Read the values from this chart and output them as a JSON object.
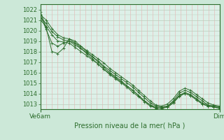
{
  "title": "Pression niveau de la mer( hPa )",
  "xlabel_left": "Ve6am",
  "xlabel_right": "Dim",
  "ylim": [
    1012.5,
    1022.5
  ],
  "yticks": [
    1013,
    1014,
    1015,
    1016,
    1017,
    1018,
    1019,
    1020,
    1021,
    1022
  ],
  "bg_color": "#cce8d8",
  "plot_bg_color": "#ddf0e8",
  "grid_color_major_h": "#bbccbb",
  "grid_color_minor_v": "#e8b0b0",
  "grid_color_major_v": "#dd9999",
  "line_color": "#2d6e2d",
  "tick_color": "#2d6e2d",
  "series": [
    [
      1021.5,
      1021.0,
      1020.2,
      1019.6,
      1019.3,
      1019.2,
      1018.8,
      1018.5,
      1018.1,
      1017.7,
      1017.3,
      1016.9,
      1016.4,
      1016.0,
      1015.6,
      1015.2,
      1014.8,
      1014.3,
      1013.8,
      1013.3,
      1012.9,
      1012.8,
      1013.0,
      1013.5,
      1014.2,
      1014.5,
      1014.3,
      1013.9,
      1013.5,
      1013.1,
      1012.9,
      1012.8
    ],
    [
      1021.2,
      1020.7,
      1019.9,
      1019.4,
      1019.1,
      1019.0,
      1018.6,
      1018.3,
      1017.9,
      1017.5,
      1017.1,
      1016.6,
      1016.2,
      1015.8,
      1015.4,
      1015.0,
      1014.6,
      1014.1,
      1013.6,
      1013.1,
      1012.8,
      1012.7,
      1012.8,
      1013.3,
      1014.0,
      1014.3,
      1014.1,
      1013.7,
      1013.3,
      1012.9,
      1012.8,
      1012.7
    ],
    [
      1021.0,
      1020.4,
      1019.6,
      1019.0,
      1018.9,
      1018.8,
      1018.4,
      1018.0,
      1017.6,
      1017.2,
      1016.8,
      1016.3,
      1015.9,
      1015.5,
      1015.1,
      1014.7,
      1014.3,
      1013.8,
      1013.3,
      1012.9,
      1012.6,
      1012.6,
      1012.7,
      1013.1,
      1013.7,
      1014.0,
      1013.8,
      1013.4,
      1013.0,
      1012.8,
      1012.7,
      1012.6
    ],
    [
      1021.8,
      1020.3,
      1018.0,
      1017.8,
      1018.3,
      1019.2,
      1019.0,
      1018.5,
      1018.0,
      1017.5,
      1017.0,
      1016.5,
      1016.0,
      1015.6,
      1015.2,
      1014.7,
      1014.3,
      1013.8,
      1013.3,
      1012.9,
      1012.7,
      1012.7,
      1012.8,
      1013.2,
      1013.8,
      1014.1,
      1013.9,
      1013.5,
      1013.1,
      1012.9,
      1012.8,
      1012.7
    ],
    [
      1021.5,
      1020.1,
      1018.8,
      1018.5,
      1018.8,
      1019.0,
      1018.8,
      1018.3,
      1017.8,
      1017.3,
      1016.8,
      1016.3,
      1015.8,
      1015.4,
      1015.0,
      1014.6,
      1014.1,
      1013.7,
      1013.2,
      1012.8,
      1012.6,
      1012.6,
      1012.7,
      1013.1,
      1013.8,
      1014.0,
      1013.8,
      1013.4,
      1013.0,
      1012.8,
      1012.7,
      1012.6
    ]
  ],
  "marker": "+",
  "markersize": 2.5,
  "linewidth": 0.7,
  "n_minor_v": 32,
  "n_major_v": 2
}
